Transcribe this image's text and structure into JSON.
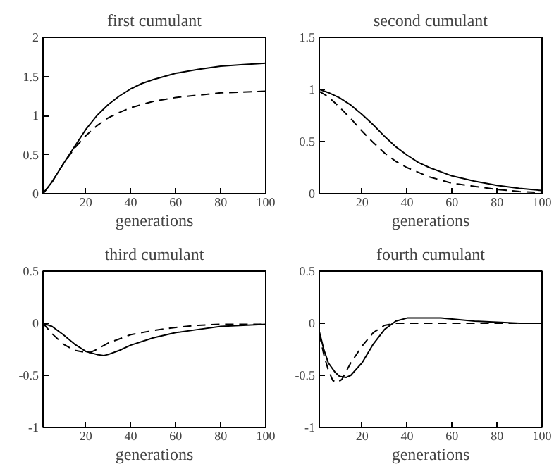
{
  "chart_data": [
    {
      "type": "line",
      "title": "first cumulant",
      "xlabel": "generations",
      "xlim": [
        1,
        100
      ],
      "xticks": [
        20,
        40,
        60,
        80,
        100
      ],
      "ylim": [
        0,
        2
      ],
      "yticks": [
        0,
        0.5,
        1,
        1.5,
        2
      ],
      "series": [
        {
          "color": "#000000",
          "line_style": "solid",
          "x": [
            1,
            5,
            10,
            15,
            20,
            25,
            30,
            35,
            40,
            45,
            50,
            60,
            70,
            80,
            90,
            100
          ],
          "values": [
            0,
            0.15,
            0.38,
            0.6,
            0.82,
            1.0,
            1.14,
            1.25,
            1.34,
            1.41,
            1.46,
            1.54,
            1.59,
            1.63,
            1.65,
            1.67
          ]
        },
        {
          "color": "#000000",
          "line_style": "dashed",
          "x": [
            1,
            5,
            10,
            15,
            20,
            25,
            30,
            35,
            40,
            50,
            60,
            70,
            80,
            90,
            100
          ],
          "values": [
            0,
            0.15,
            0.38,
            0.58,
            0.74,
            0.87,
            0.97,
            1.04,
            1.1,
            1.18,
            1.23,
            1.26,
            1.29,
            1.3,
            1.31
          ]
        }
      ]
    },
    {
      "type": "line",
      "title": "second cumulant",
      "xlabel": "generations",
      "xlim": [
        1,
        100
      ],
      "xticks": [
        20,
        40,
        60,
        80,
        100
      ],
      "ylim": [
        0,
        1.5
      ],
      "yticks": [
        0,
        0.5,
        1,
        1.5
      ],
      "series": [
        {
          "color": "#000000",
          "line_style": "solid",
          "x": [
            1,
            5,
            10,
            15,
            20,
            25,
            30,
            35,
            40,
            45,
            50,
            60,
            70,
            80,
            90,
            100
          ],
          "values": [
            1.0,
            0.97,
            0.92,
            0.85,
            0.76,
            0.66,
            0.55,
            0.45,
            0.37,
            0.3,
            0.25,
            0.17,
            0.12,
            0.08,
            0.05,
            0.03
          ]
        },
        {
          "color": "#000000",
          "line_style": "dashed",
          "x": [
            1,
            5,
            10,
            15,
            20,
            25,
            30,
            35,
            40,
            50,
            60,
            70,
            80,
            90,
            100
          ],
          "values": [
            0.98,
            0.93,
            0.83,
            0.72,
            0.6,
            0.49,
            0.39,
            0.31,
            0.25,
            0.16,
            0.1,
            0.07,
            0.04,
            0.02,
            0.01
          ]
        }
      ]
    },
    {
      "type": "line",
      "title": "third cumulant",
      "xlabel": "generations",
      "xlim": [
        1,
        100
      ],
      "xticks": [
        20,
        40,
        60,
        80,
        100
      ],
      "ylim": [
        -1,
        0.5
      ],
      "yticks": [
        -1,
        -0.5,
        0,
        0.5
      ],
      "series": [
        {
          "color": "#000000",
          "line_style": "solid",
          "x": [
            1,
            5,
            10,
            15,
            20,
            25,
            28,
            30,
            35,
            40,
            50,
            60,
            70,
            80,
            90,
            100
          ],
          "values": [
            0,
            -0.03,
            -0.11,
            -0.2,
            -0.27,
            -0.3,
            -0.31,
            -0.3,
            -0.26,
            -0.21,
            -0.14,
            -0.09,
            -0.06,
            -0.03,
            -0.02,
            -0.01
          ]
        },
        {
          "color": "#000000",
          "line_style": "dashed",
          "x": [
            1,
            5,
            10,
            15,
            20,
            22,
            25,
            30,
            35,
            40,
            50,
            60,
            70,
            80,
            90,
            100
          ],
          "values": [
            0,
            -0.1,
            -0.2,
            -0.26,
            -0.28,
            -0.28,
            -0.25,
            -0.19,
            -0.15,
            -0.11,
            -0.07,
            -0.04,
            -0.02,
            -0.01,
            -0.01,
            -0.01
          ]
        }
      ]
    },
    {
      "type": "line",
      "title": "fourth cumulant",
      "xlabel": "generations",
      "xlim": [
        1,
        100
      ],
      "xticks": [
        20,
        40,
        60,
        80,
        100
      ],
      "ylim": [
        -1,
        0.5
      ],
      "yticks": [
        -1,
        -0.5,
        0,
        0.5
      ],
      "series": [
        {
          "color": "#000000",
          "line_style": "solid",
          "x": [
            1,
            3,
            5,
            8,
            10,
            13,
            15,
            20,
            25,
            30,
            35,
            40,
            45,
            55,
            60,
            70,
            80,
            90,
            100
          ],
          "values": [
            -0.08,
            -0.25,
            -0.38,
            -0.47,
            -0.51,
            -0.52,
            -0.5,
            -0.38,
            -0.2,
            -0.06,
            0.02,
            0.05,
            0.05,
            0.05,
            0.04,
            0.02,
            0.01,
            0.0,
            0.0
          ]
        },
        {
          "color": "#000000",
          "line_style": "dashed",
          "x": [
            1,
            3,
            5,
            7,
            9,
            11,
            15,
            20,
            25,
            30,
            35,
            40,
            60,
            80,
            100
          ],
          "values": [
            -0.1,
            -0.3,
            -0.45,
            -0.55,
            -0.57,
            -0.54,
            -0.38,
            -0.22,
            -0.09,
            -0.02,
            0.0,
            0.0,
            0.0,
            0.0,
            0.0
          ]
        }
      ]
    }
  ]
}
